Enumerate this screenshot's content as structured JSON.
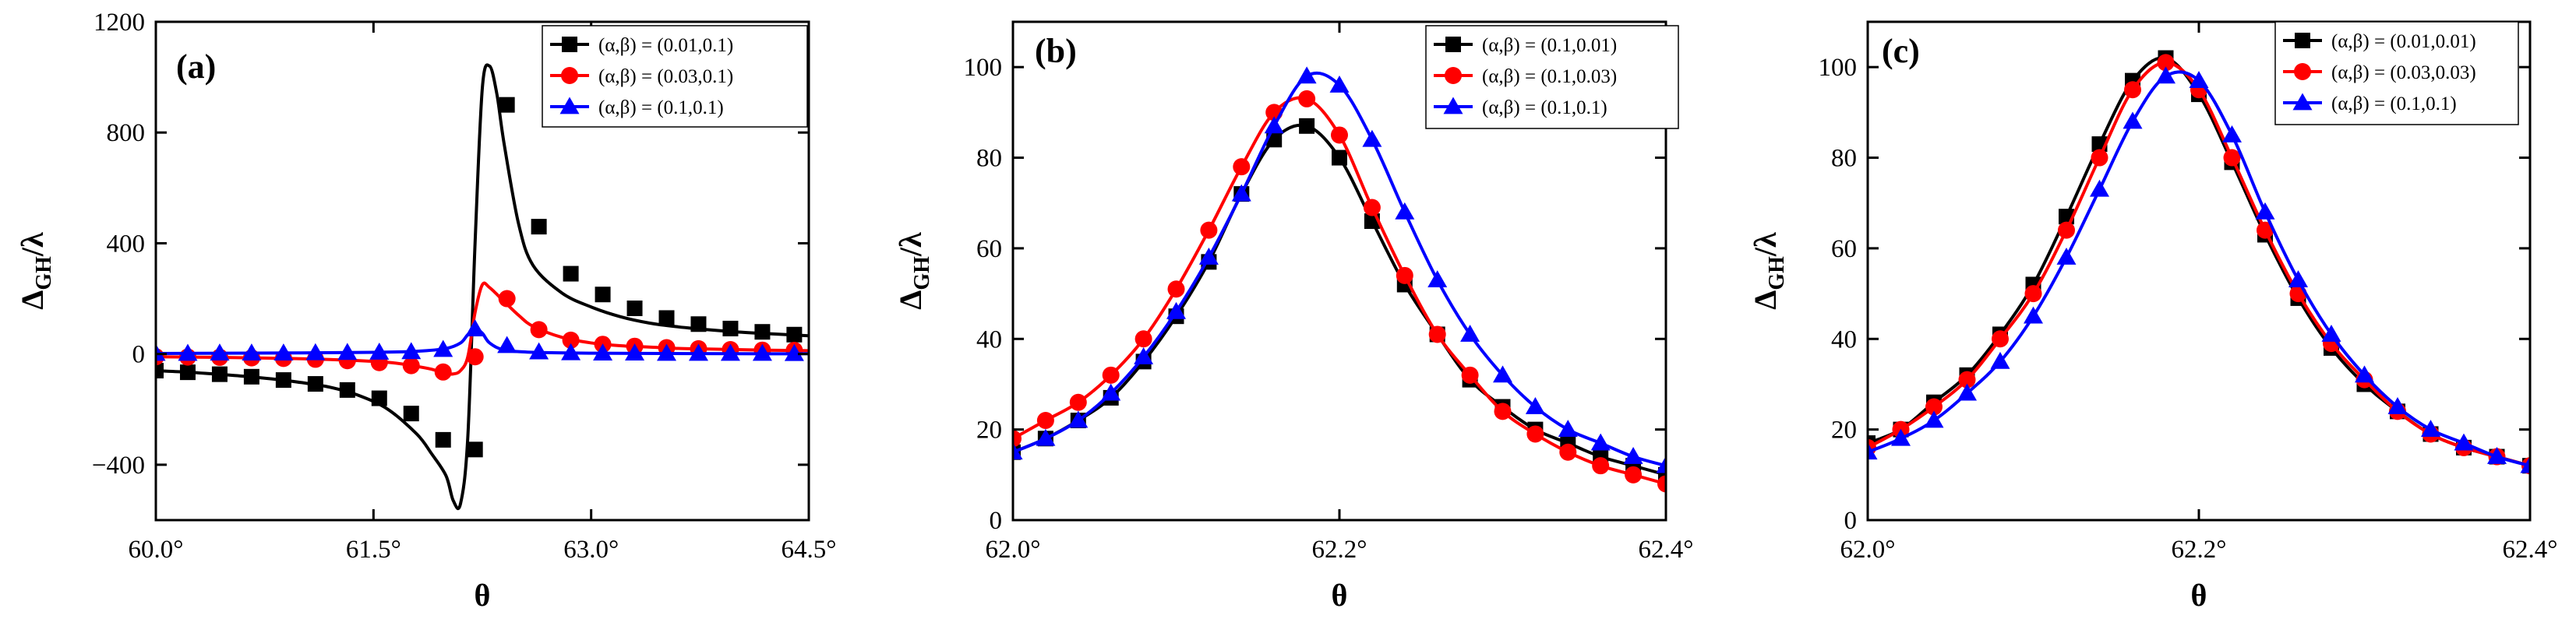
{
  "colors": {
    "black": "#000000",
    "red": "#ff0000",
    "blue": "#0000ff"
  },
  "chart_data": [
    {
      "type": "line",
      "panel_label": "(a)",
      "xlabel": "θ",
      "ylabel_main": "Δ",
      "ylabel_sub": "GH",
      "ylabel_tail": "/λ",
      "xlim": [
        60.0,
        64.5
      ],
      "ylim": [
        -600,
        1200
      ],
      "xticks": [
        60.0,
        61.5,
        63.0,
        64.5
      ],
      "xtick_labels": [
        "60.0°",
        "61.5°",
        "63.0°",
        "64.5°"
      ],
      "yticks": [
        -400,
        0,
        400,
        800,
        1200
      ],
      "ytick_labels": [
        "−400",
        "0",
        "400",
        "800",
        "1200"
      ],
      "legend": "top-right",
      "series": [
        {
          "name": "(α,β) = (0.01,0.1)",
          "color": "#000000",
          "marker": "square",
          "x": [
            60.0,
            60.2,
            60.4,
            60.6,
            60.8,
            61.0,
            61.2,
            61.4,
            61.6,
            61.8,
            61.9,
            62.0,
            62.05,
            62.1,
            62.15,
            62.2,
            62.25,
            62.3,
            62.35,
            62.4,
            62.5,
            62.6,
            62.8,
            63.0,
            63.2,
            63.4,
            63.6,
            63.8,
            64.0,
            64.2,
            64.5
          ],
          "y": [
            -60,
            -65,
            -72,
            -80,
            -90,
            -103,
            -120,
            -150,
            -200,
            -290,
            -360,
            -440,
            -530,
            -540,
            -300,
            400,
            960,
            1040,
            940,
            760,
            470,
            320,
            220,
            170,
            135,
            112,
            98,
            88,
            80,
            74,
            66
          ],
          "marker_x": [
            60.0,
            60.22,
            60.44,
            60.66,
            60.88,
            61.1,
            61.32,
            61.54,
            61.76,
            61.98,
            62.2,
            62.42,
            62.64,
            62.86,
            63.08,
            63.3,
            63.52,
            63.74,
            63.96,
            64.18,
            64.4
          ],
          "marker_y": [
            -60,
            -66,
            -73,
            -82,
            -94,
            -108,
            -130,
            -160,
            -215,
            -310,
            -345,
            900,
            460,
            290,
            215,
            165,
            130,
            108,
            92,
            80,
            70
          ]
        },
        {
          "name": "(α,β) = (0.03,0.1)",
          "color": "#ff0000",
          "marker": "circle",
          "x": [
            60.0,
            60.4,
            60.8,
            61.2,
            61.6,
            61.8,
            61.9,
            62.0,
            62.05,
            62.1,
            62.15,
            62.2,
            62.25,
            62.3,
            62.4,
            62.5,
            62.6,
            62.8,
            63.0,
            63.2,
            63.4,
            63.6,
            63.8,
            64.0,
            64.2,
            64.5
          ],
          "y": [
            -10,
            -12,
            -15,
            -20,
            -30,
            -45,
            -55,
            -70,
            -72,
            -60,
            -10,
            150,
            250,
            240,
            190,
            140,
            100,
            60,
            40,
            30,
            25,
            20,
            18,
            16,
            14,
            12
          ],
          "marker_x": [
            60.0,
            60.22,
            60.44,
            60.66,
            60.88,
            61.1,
            61.32,
            61.54,
            61.76,
            61.98,
            62.2,
            62.42,
            62.64,
            62.86,
            63.08,
            63.3,
            63.52,
            63.74,
            63.96,
            64.18,
            64.4
          ],
          "marker_y": [
            -10,
            -11,
            -12,
            -14,
            -16,
            -19,
            -24,
            -31,
            -42,
            -65,
            -10,
            200,
            88,
            50,
            35,
            28,
            23,
            19,
            16,
            14,
            13
          ]
        },
        {
          "name": "(α,β) = (0.1,0.1)",
          "color": "#0000ff",
          "marker": "triangle",
          "x": [
            60.0,
            60.5,
            61.0,
            61.5,
            61.8,
            62.0,
            62.1,
            62.15,
            62.2,
            62.25,
            62.3,
            62.4,
            62.6,
            63.0,
            63.5,
            64.0,
            64.5
          ],
          "y": [
            2,
            3,
            4,
            6,
            10,
            20,
            40,
            70,
            90,
            75,
            40,
            15,
            6,
            3,
            2,
            1,
            1
          ],
          "marker_x": [
            60.0,
            60.22,
            60.44,
            60.66,
            60.88,
            61.1,
            61.32,
            61.54,
            61.76,
            61.98,
            62.2,
            62.42,
            62.64,
            62.86,
            63.08,
            63.3,
            63.52,
            63.74,
            63.96,
            64.18,
            64.4
          ],
          "marker_y": [
            2,
            2,
            3,
            3,
            3,
            4,
            5,
            6,
            8,
            16,
            90,
            30,
            7,
            4,
            3,
            3,
            2,
            2,
            2,
            2,
            1
          ]
        }
      ]
    },
    {
      "type": "line",
      "panel_label": "(b)",
      "xlabel": "θ",
      "ylabel_main": "Δ",
      "ylabel_sub": "GH",
      "ylabel_tail": "/λ",
      "xlim": [
        62.0,
        62.4
      ],
      "ylim": [
        0,
        110
      ],
      "xticks": [
        62.0,
        62.2,
        62.4
      ],
      "xtick_labels": [
        "62.0°",
        "62.2°",
        "62.4°"
      ],
      "yticks": [
        0,
        20,
        40,
        60,
        80,
        100
      ],
      "ytick_labels": [
        "0",
        "20",
        "40",
        "60",
        "80",
        "100"
      ],
      "legend": "top-right",
      "series": [
        {
          "name": "(α,β) = (0.1,0.01)",
          "color": "#000000",
          "marker": "square",
          "x": [
            62.0,
            62.02,
            62.04,
            62.06,
            62.08,
            62.1,
            62.12,
            62.14,
            62.16,
            62.18,
            62.2,
            62.22,
            62.24,
            62.26,
            62.28,
            62.3,
            62.32,
            62.34,
            62.36,
            62.38,
            62.4
          ],
          "y": [
            15,
            18,
            22,
            27,
            35,
            45,
            57,
            72,
            84,
            87,
            80,
            66,
            52,
            41,
            31,
            25,
            20,
            17,
            14,
            12,
            10
          ]
        },
        {
          "name": "(α,β) = (0.1,0.03)",
          "color": "#ff0000",
          "marker": "circle",
          "x": [
            62.0,
            62.02,
            62.04,
            62.06,
            62.08,
            62.1,
            62.12,
            62.14,
            62.16,
            62.18,
            62.2,
            62.22,
            62.24,
            62.26,
            62.28,
            62.3,
            62.32,
            62.34,
            62.36,
            62.38,
            62.4
          ],
          "y": [
            18,
            22,
            26,
            32,
            40,
            51,
            64,
            78,
            90,
            93,
            85,
            69,
            54,
            41,
            32,
            24,
            19,
            15,
            12,
            10,
            8
          ]
        },
        {
          "name": "(α,β) = (0.1,0.1)",
          "color": "#0000ff",
          "marker": "triangle",
          "x": [
            62.0,
            62.02,
            62.04,
            62.06,
            62.08,
            62.1,
            62.12,
            62.14,
            62.16,
            62.18,
            62.2,
            62.22,
            62.24,
            62.26,
            62.28,
            62.3,
            62.32,
            62.34,
            62.36,
            62.38,
            62.4
          ],
          "y": [
            15,
            18,
            22,
            28,
            36,
            46,
            58,
            72,
            87,
            98,
            96,
            84,
            68,
            53,
            41,
            32,
            25,
            20,
            17,
            14,
            12
          ]
        }
      ]
    },
    {
      "type": "line",
      "panel_label": "(c)",
      "xlabel": "θ",
      "ylabel_main": "Δ",
      "ylabel_sub": "GH",
      "ylabel_tail": "/λ",
      "xlim": [
        62.0,
        62.4
      ],
      "ylim": [
        0,
        110
      ],
      "xticks": [
        62.0,
        62.2,
        62.4
      ],
      "xtick_labels": [
        "62.0°",
        "62.2°",
        "62.4°"
      ],
      "yticks": [
        0,
        20,
        40,
        60,
        80,
        100
      ],
      "ytick_labels": [
        "0",
        "20",
        "40",
        "60",
        "80",
        "100"
      ],
      "legend": "top-right",
      "series": [
        {
          "name": "(α,β) = (0.01,0.01)",
          "color": "#000000",
          "marker": "square",
          "x": [
            62.0,
            62.02,
            62.04,
            62.06,
            62.08,
            62.1,
            62.12,
            62.14,
            62.16,
            62.18,
            62.2,
            62.22,
            62.24,
            62.26,
            62.28,
            62.3,
            62.32,
            62.34,
            62.36,
            62.38,
            62.4
          ],
          "y": [
            17,
            20,
            26,
            32,
            41,
            52,
            67,
            83,
            97,
            102,
            94,
            79,
            63,
            49,
            38,
            30,
            24,
            19,
            16,
            14,
            12
          ]
        },
        {
          "name": "(α,β) = (0.03,0.03)",
          "color": "#ff0000",
          "marker": "circle",
          "x": [
            62.0,
            62.02,
            62.04,
            62.06,
            62.08,
            62.1,
            62.12,
            62.14,
            62.16,
            62.18,
            62.2,
            62.22,
            62.24,
            62.26,
            62.28,
            62.3,
            62.32,
            62.34,
            62.36,
            62.38,
            62.4
          ],
          "y": [
            16,
            20,
            25,
            31,
            40,
            50,
            64,
            80,
            95,
            101,
            95,
            80,
            64,
            50,
            39,
            31,
            24,
            19,
            16,
            14,
            12
          ]
        },
        {
          "name": "(α,β) = (0.1,0.1)",
          "color": "#0000ff",
          "marker": "triangle",
          "x": [
            62.0,
            62.02,
            62.04,
            62.06,
            62.08,
            62.1,
            62.12,
            62.14,
            62.16,
            62.18,
            62.2,
            62.22,
            62.24,
            62.26,
            62.28,
            62.3,
            62.32,
            62.34,
            62.36,
            62.38,
            62.4
          ],
          "y": [
            15,
            18,
            22,
            28,
            35,
            45,
            58,
            73,
            88,
            98,
            97,
            85,
            68,
            53,
            41,
            32,
            25,
            20,
            17,
            14,
            12
          ]
        }
      ]
    }
  ]
}
